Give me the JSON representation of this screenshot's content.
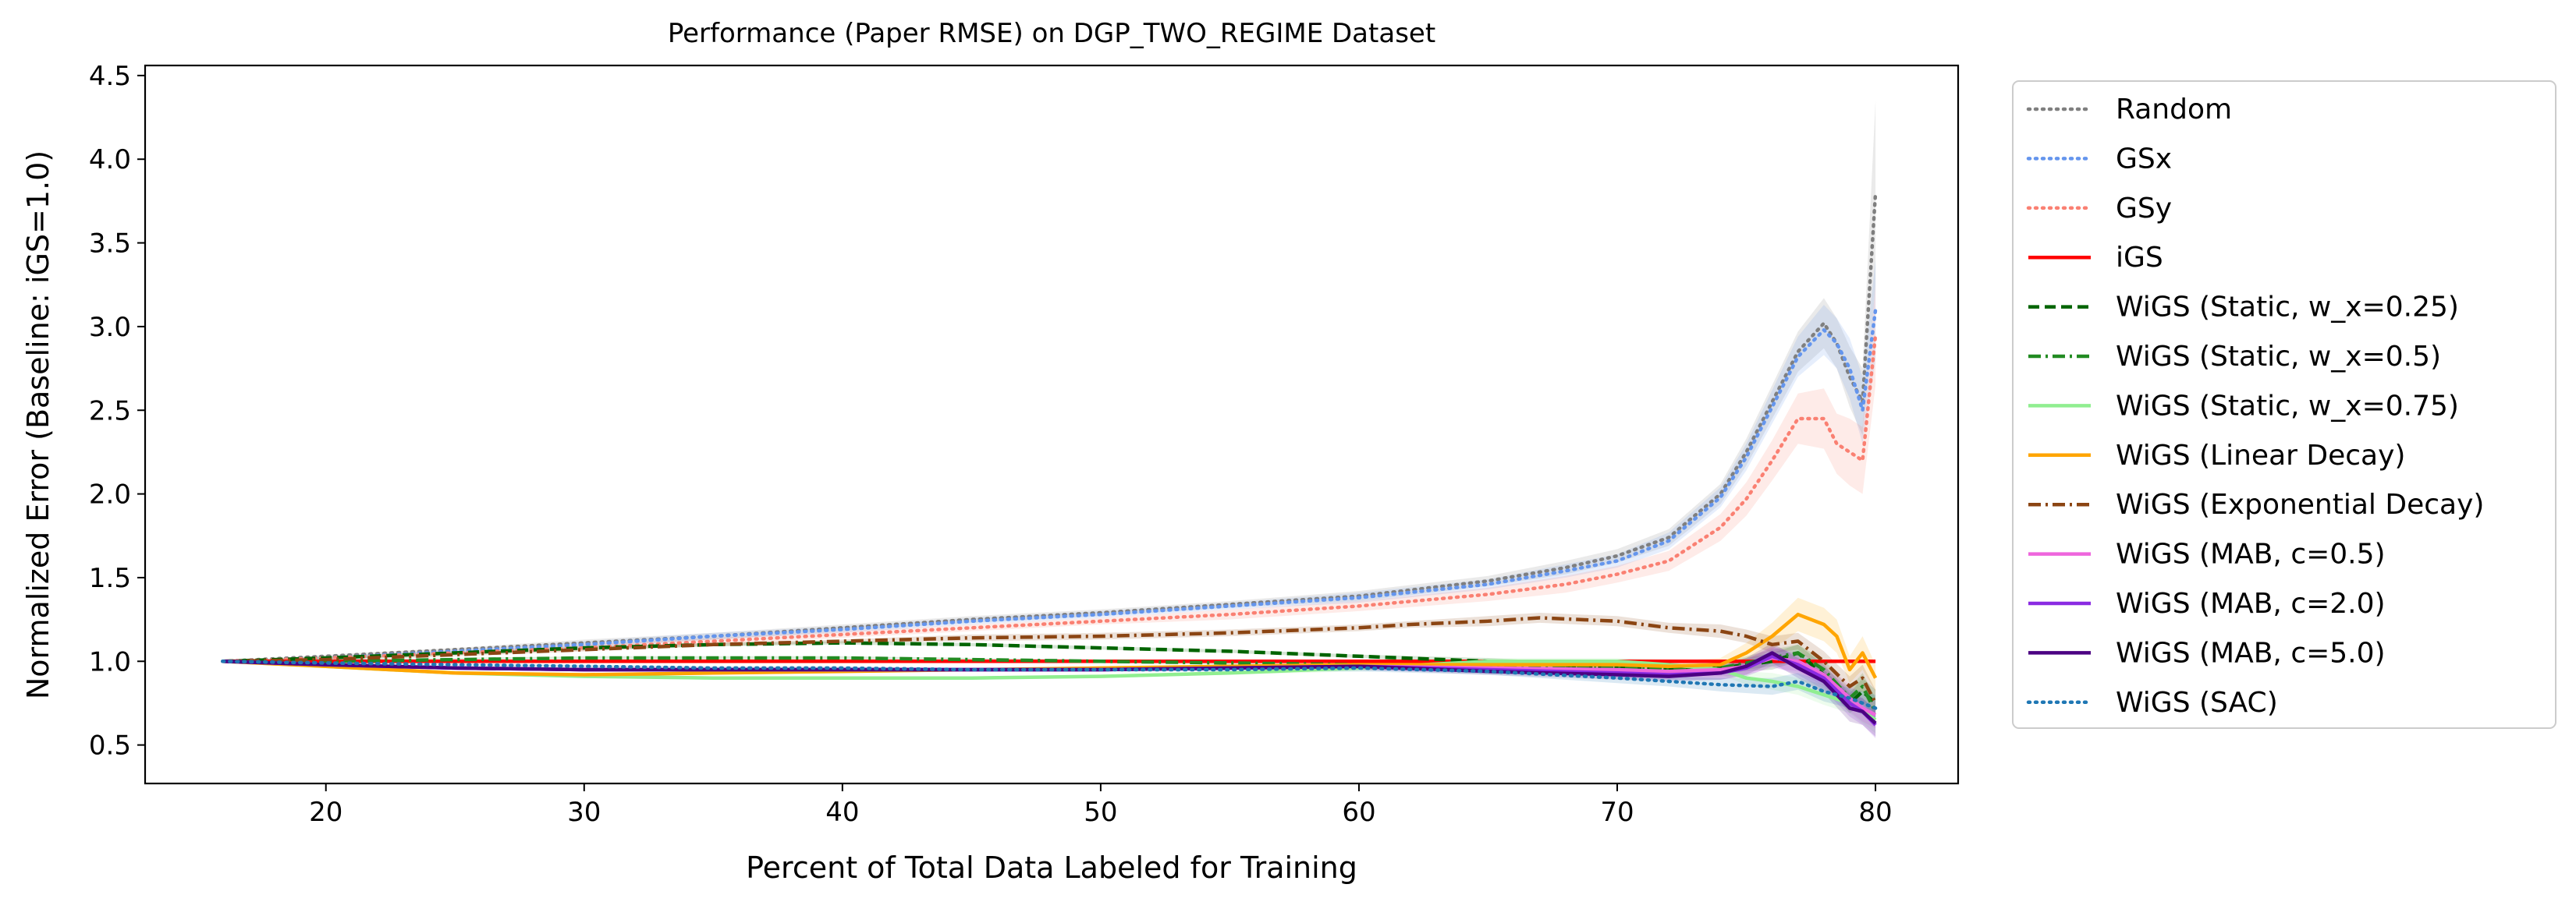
{
  "chart_data": {
    "type": "line",
    "title": "Performance (Paper RMSE) on DGP_TWO_REGIME Dataset",
    "xlabel": "Percent of Total Data Labeled for Training",
    "ylabel": "Normalized Error (Baseline: iGS=1.0)",
    "xlim": [
      13,
      83.2
    ],
    "ylim": [
      0.27,
      4.56
    ],
    "xticks": [
      20,
      30,
      40,
      50,
      60,
      70,
      80
    ],
    "yticks": [
      0.5,
      1.0,
      1.5,
      2.0,
      2.5,
      3.0,
      3.5,
      4.0,
      4.5
    ],
    "xtick_labels": [
      "20",
      "30",
      "40",
      "50",
      "60",
      "70",
      "80"
    ],
    "ytick_labels": [
      "0.5",
      "1.0",
      "1.5",
      "2.0",
      "2.5",
      "3.0",
      "3.5",
      "4.0",
      "4.5"
    ],
    "grid": false,
    "legend_position": "outside-right",
    "series": [
      {
        "name": "Random",
        "color": "#7f7f7f",
        "dash": "dot",
        "x": [
          16,
          20,
          25,
          30,
          35,
          40,
          45,
          50,
          55,
          60,
          65,
          68,
          70,
          72,
          74,
          75,
          76,
          77,
          78,
          78.5,
          79,
          79.5,
          80
        ],
        "y": [
          1.0,
          1.03,
          1.07,
          1.11,
          1.15,
          1.2,
          1.25,
          1.29,
          1.34,
          1.39,
          1.48,
          1.56,
          1.63,
          1.74,
          2.0,
          2.25,
          2.55,
          2.85,
          3.02,
          2.9,
          2.7,
          2.55,
          3.8
        ],
        "band": [
          0,
          0.01,
          0.01,
          0.02,
          0.02,
          0.02,
          0.02,
          0.02,
          0.02,
          0.03,
          0.03,
          0.04,
          0.04,
          0.05,
          0.06,
          0.08,
          0.1,
          0.12,
          0.15,
          0.15,
          0.18,
          0.2,
          0.55
        ]
      },
      {
        "name": "GSx",
        "color": "#6495ed",
        "dash": "dot",
        "x": [
          16,
          20,
          25,
          30,
          35,
          40,
          45,
          50,
          55,
          60,
          65,
          68,
          70,
          72,
          74,
          75,
          76,
          77,
          78,
          78.5,
          79,
          79.5,
          80
        ],
        "y": [
          1.0,
          1.02,
          1.06,
          1.1,
          1.15,
          1.19,
          1.24,
          1.28,
          1.33,
          1.38,
          1.46,
          1.54,
          1.6,
          1.72,
          1.98,
          2.22,
          2.52,
          2.82,
          2.98,
          2.9,
          2.75,
          2.5,
          3.1
        ],
        "band": [
          0,
          0.01,
          0.01,
          0.02,
          0.02,
          0.02,
          0.02,
          0.02,
          0.02,
          0.03,
          0.03,
          0.04,
          0.04,
          0.05,
          0.06,
          0.08,
          0.1,
          0.12,
          0.15,
          0.15,
          0.18,
          0.2,
          0.3
        ]
      },
      {
        "name": "GSy",
        "color": "#fa8072",
        "dash": "dot",
        "x": [
          16,
          20,
          25,
          30,
          35,
          40,
          45,
          50,
          55,
          60,
          65,
          68,
          70,
          72,
          74,
          75,
          76,
          77,
          78,
          78.5,
          79,
          79.5,
          80
        ],
        "y": [
          1.0,
          1.02,
          1.05,
          1.08,
          1.12,
          1.16,
          1.2,
          1.24,
          1.28,
          1.33,
          1.4,
          1.46,
          1.52,
          1.6,
          1.8,
          1.97,
          2.2,
          2.45,
          2.45,
          2.3,
          2.25,
          2.2,
          2.95
        ],
        "band": [
          0,
          0.01,
          0.01,
          0.02,
          0.02,
          0.02,
          0.02,
          0.02,
          0.03,
          0.03,
          0.04,
          0.05,
          0.05,
          0.06,
          0.08,
          0.1,
          0.12,
          0.15,
          0.18,
          0.18,
          0.2,
          0.2,
          0.3
        ]
      },
      {
        "name": "iGS",
        "color": "#ff0000",
        "dash": "solid",
        "x": [
          16,
          80
        ],
        "y": [
          1.0,
          1.0
        ],
        "band": [
          0,
          0
        ]
      },
      {
        "name": "WiGS (Static, w_x=0.25)",
        "color": "#006400",
        "dash": "dash",
        "x": [
          16,
          20,
          25,
          30,
          35,
          40,
          45,
          50,
          55,
          60,
          65,
          70,
          72,
          74,
          76,
          77,
          78,
          79,
          79.5,
          80
        ],
        "y": [
          1.0,
          1.02,
          1.05,
          1.08,
          1.1,
          1.11,
          1.1,
          1.08,
          1.06,
          1.03,
          1.0,
          0.96,
          0.95,
          0.96,
          1.0,
          1.05,
          0.92,
          0.75,
          0.82,
          0.75
        ],
        "band": [
          0,
          0.01,
          0.01,
          0.01,
          0.01,
          0.01,
          0.01,
          0.01,
          0.01,
          0.01,
          0.02,
          0.02,
          0.03,
          0.03,
          0.05,
          0.05,
          0.06,
          0.06,
          0.08,
          0.08
        ]
      },
      {
        "name": "WiGS (Static, w_x=0.5)",
        "color": "#228b22",
        "dash": "dashdot",
        "x": [
          16,
          20,
          25,
          30,
          35,
          40,
          45,
          50,
          55,
          60,
          65,
          70,
          72,
          74,
          76,
          77,
          78,
          79,
          79.5,
          80
        ],
        "y": [
          1.0,
          1.0,
          1.01,
          1.02,
          1.02,
          1.02,
          1.01,
          1.0,
          0.99,
          0.98,
          0.97,
          0.96,
          0.95,
          0.96,
          1.02,
          1.05,
          0.95,
          0.78,
          0.85,
          0.7
        ],
        "band": [
          0,
          0.01,
          0.01,
          0.01,
          0.01,
          0.01,
          0.01,
          0.01,
          0.01,
          0.02,
          0.02,
          0.02,
          0.03,
          0.03,
          0.05,
          0.05,
          0.06,
          0.06,
          0.08,
          0.08
        ]
      },
      {
        "name": "WiGS (Static, w_x=0.75)",
        "color": "#90ee90",
        "dash": "solid",
        "x": [
          16,
          20,
          25,
          30,
          35,
          40,
          45,
          50,
          55,
          60,
          65,
          70,
          72,
          74,
          75,
          76,
          77,
          78,
          79,
          80
        ],
        "y": [
          1.0,
          0.97,
          0.93,
          0.91,
          0.9,
          0.9,
          0.9,
          0.91,
          0.93,
          0.96,
          1.0,
          1.0,
          0.98,
          0.95,
          0.9,
          0.88,
          0.85,
          0.8,
          0.75,
          0.65
        ],
        "band": [
          0,
          0.01,
          0.01,
          0.01,
          0.01,
          0.01,
          0.01,
          0.01,
          0.01,
          0.02,
          0.02,
          0.02,
          0.03,
          0.03,
          0.04,
          0.05,
          0.05,
          0.06,
          0.06,
          0.08
        ]
      },
      {
        "name": "WiGS (Linear Decay)",
        "color": "#ffa500",
        "dash": "solid",
        "x": [
          16,
          20,
          25,
          30,
          35,
          40,
          45,
          50,
          55,
          60,
          65,
          70,
          72,
          74,
          75,
          76,
          77,
          78,
          78.5,
          79,
          79.5,
          80
        ],
        "y": [
          1.0,
          0.97,
          0.93,
          0.92,
          0.93,
          0.94,
          0.95,
          0.96,
          0.97,
          0.98,
          0.98,
          0.98,
          0.97,
          0.98,
          1.05,
          1.15,
          1.28,
          1.22,
          1.15,
          0.95,
          1.05,
          0.9
        ],
        "band": [
          0,
          0.01,
          0.01,
          0.01,
          0.01,
          0.01,
          0.01,
          0.01,
          0.01,
          0.02,
          0.02,
          0.02,
          0.03,
          0.04,
          0.06,
          0.08,
          0.1,
          0.1,
          0.1,
          0.08,
          0.1,
          0.08
        ]
      },
      {
        "name": "WiGS (Exponential Decay)",
        "color": "#8b4513",
        "dash": "dashdot",
        "x": [
          16,
          20,
          25,
          30,
          35,
          40,
          45,
          50,
          55,
          60,
          62,
          65,
          67,
          70,
          72,
          74,
          75,
          76,
          77,
          78,
          79,
          79.5,
          80
        ],
        "y": [
          1.0,
          1.01,
          1.04,
          1.07,
          1.1,
          1.12,
          1.14,
          1.15,
          1.17,
          1.2,
          1.22,
          1.24,
          1.26,
          1.24,
          1.2,
          1.18,
          1.15,
          1.1,
          1.12,
          1.0,
          0.85,
          0.9,
          0.75
        ],
        "band": [
          0,
          0.01,
          0.01,
          0.01,
          0.01,
          0.01,
          0.02,
          0.02,
          0.02,
          0.02,
          0.02,
          0.03,
          0.03,
          0.03,
          0.03,
          0.04,
          0.04,
          0.05,
          0.05,
          0.06,
          0.06,
          0.08,
          0.08
        ]
      },
      {
        "name": "WiGS (MAB, c=0.5)",
        "color": "#ee66dd",
        "dash": "solid",
        "x": [
          16,
          20,
          25,
          30,
          35,
          40,
          45,
          50,
          55,
          60,
          65,
          70,
          72,
          74,
          75,
          76,
          77,
          78,
          79,
          79.5,
          80
        ],
        "y": [
          1.0,
          0.98,
          0.96,
          0.95,
          0.95,
          0.95,
          0.95,
          0.95,
          0.96,
          0.97,
          0.96,
          0.95,
          0.94,
          0.95,
          0.97,
          1.02,
          1.0,
          0.92,
          0.78,
          0.72,
          0.68
        ],
        "band": [
          0,
          0.01,
          0.01,
          0.01,
          0.01,
          0.01,
          0.01,
          0.01,
          0.01,
          0.02,
          0.02,
          0.03,
          0.03,
          0.04,
          0.05,
          0.06,
          0.06,
          0.07,
          0.08,
          0.08,
          0.08
        ]
      },
      {
        "name": "WiGS (MAB, c=2.0)",
        "color": "#8a2be2",
        "dash": "solid",
        "x": [
          16,
          20,
          25,
          30,
          35,
          40,
          45,
          50,
          55,
          60,
          65,
          70,
          72,
          74,
          75,
          76,
          77,
          78,
          79,
          79.5,
          80
        ],
        "y": [
          1.0,
          0.98,
          0.96,
          0.95,
          0.95,
          0.95,
          0.95,
          0.95,
          0.96,
          0.97,
          0.95,
          0.93,
          0.92,
          0.93,
          0.96,
          1.03,
          0.98,
          0.9,
          0.75,
          0.7,
          0.62
        ],
        "band": [
          0,
          0.01,
          0.01,
          0.01,
          0.01,
          0.01,
          0.01,
          0.01,
          0.01,
          0.02,
          0.02,
          0.03,
          0.03,
          0.04,
          0.05,
          0.06,
          0.06,
          0.07,
          0.08,
          0.08,
          0.08
        ]
      },
      {
        "name": "WiGS (MAB, c=5.0)",
        "color": "#4b0082",
        "dash": "solid",
        "x": [
          16,
          20,
          25,
          30,
          35,
          40,
          45,
          50,
          55,
          60,
          65,
          70,
          72,
          74,
          75,
          76,
          77,
          78,
          79,
          79.5,
          80
        ],
        "y": [
          1.0,
          0.98,
          0.96,
          0.95,
          0.95,
          0.95,
          0.95,
          0.95,
          0.96,
          0.97,
          0.94,
          0.92,
          0.91,
          0.93,
          0.97,
          1.05,
          0.96,
          0.88,
          0.72,
          0.7,
          0.63
        ],
        "band": [
          0,
          0.01,
          0.01,
          0.01,
          0.01,
          0.01,
          0.01,
          0.01,
          0.01,
          0.02,
          0.02,
          0.03,
          0.03,
          0.04,
          0.05,
          0.06,
          0.06,
          0.07,
          0.08,
          0.08,
          0.08
        ]
      },
      {
        "name": "WiGS (SAC)",
        "color": "#1f77b4",
        "dash": "dot",
        "x": [
          16,
          20,
          25,
          30,
          35,
          40,
          45,
          50,
          55,
          60,
          65,
          70,
          72,
          74,
          76,
          77,
          78,
          79,
          80
        ],
        "y": [
          1.0,
          0.99,
          0.98,
          0.97,
          0.96,
          0.96,
          0.95,
          0.95,
          0.95,
          0.96,
          0.94,
          0.9,
          0.88,
          0.86,
          0.85,
          0.88,
          0.82,
          0.78,
          0.72
        ],
        "band": [
          0,
          0.01,
          0.01,
          0.01,
          0.01,
          0.01,
          0.01,
          0.01,
          0.01,
          0.02,
          0.02,
          0.03,
          0.03,
          0.04,
          0.05,
          0.05,
          0.06,
          0.06,
          0.08
        ]
      }
    ]
  }
}
